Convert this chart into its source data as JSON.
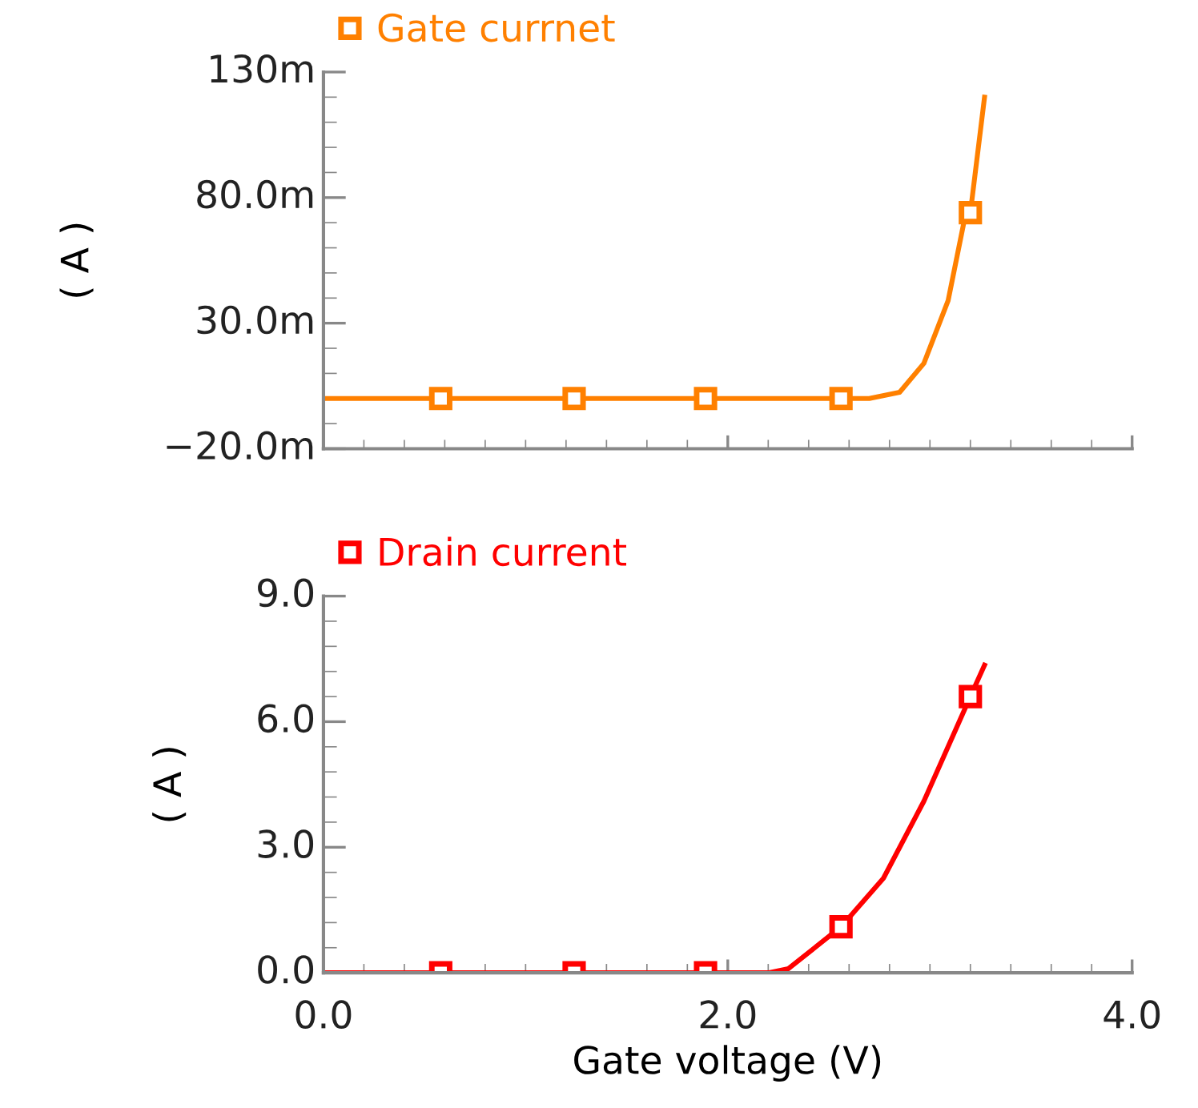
{
  "chart_data": [
    {
      "type": "line",
      "ylabel": "( A )",
      "legend": "top left",
      "tick_labels": "y",
      "xlim": [
        0,
        4.0
      ],
      "xticks": [
        {
          "value": 0,
          "label": null
        },
        {
          "value": 2.0,
          "label": null
        },
        {
          "value": 4.0,
          "label": null
        }
      ],
      "ylim": [
        -20,
        130
      ],
      "yticks": [
        {
          "value": -20,
          "label": "−20.0m"
        },
        {
          "value": 30,
          "label": "30.0m"
        },
        {
          "value": 80,
          "label": "80.0m"
        },
        {
          "value": 130,
          "label": "130m"
        }
      ],
      "series": [
        {
          "color": "#ff8000",
          "x": [
            0,
            0.58,
            1.24,
            1.89,
            2.56,
            2.7,
            2.85,
            2.97,
            3.09,
            3.17,
            3.2,
            3.27
          ],
          "values": [
            0,
            0,
            0,
            0,
            0,
            0,
            2.5,
            14,
            39,
            71,
            74,
            120
          ]
        },
        {
          "type": "scatter",
          "name": "Gate currnet",
          "marker": "square",
          "color": "#ff8000",
          "x": [
            0.58,
            1.24,
            1.89,
            2.56,
            3.2
          ],
          "values": [
            0,
            0,
            0,
            0,
            74
          ]
        }
      ]
    },
    {
      "type": "line",
      "xlabel": "Gate voltage (V)",
      "ylabel": "( A )",
      "legend": "top left",
      "xlim": [
        0,
        4.0
      ],
      "xticks": [
        {
          "value": 0,
          "label": "0.0"
        },
        {
          "value": 2.0,
          "label": "2.0"
        },
        {
          "value": 4.0,
          "label": "4.0"
        }
      ],
      "ylim": [
        0,
        9.0
      ],
      "yticks": [
        {
          "value": 0,
          "label": "0.0"
        },
        {
          "value": 3.0,
          "label": "3.0"
        },
        {
          "value": 6.0,
          "label": "6.0"
        },
        {
          "value": 9.0,
          "label": "9.0"
        }
      ],
      "series": [
        {
          "color": "#ff0000",
          "x": [
            0,
            0.58,
            1.24,
            1.89,
            2.2,
            2.3,
            2.56,
            2.77,
            2.97,
            3.2,
            3.27
          ],
          "values": [
            0,
            0,
            0,
            0,
            0,
            0.1,
            1.1,
            2.26,
            4.1,
            6.6,
            7.35
          ]
        },
        {
          "type": "scatter",
          "name": "Drain current",
          "marker": "square",
          "color": "#ff0000",
          "x": [
            0.58,
            1.24,
            1.89,
            2.56,
            3.2
          ],
          "values": [
            0,
            0,
            0,
            1.1,
            6.6
          ]
        }
      ]
    }
  ]
}
